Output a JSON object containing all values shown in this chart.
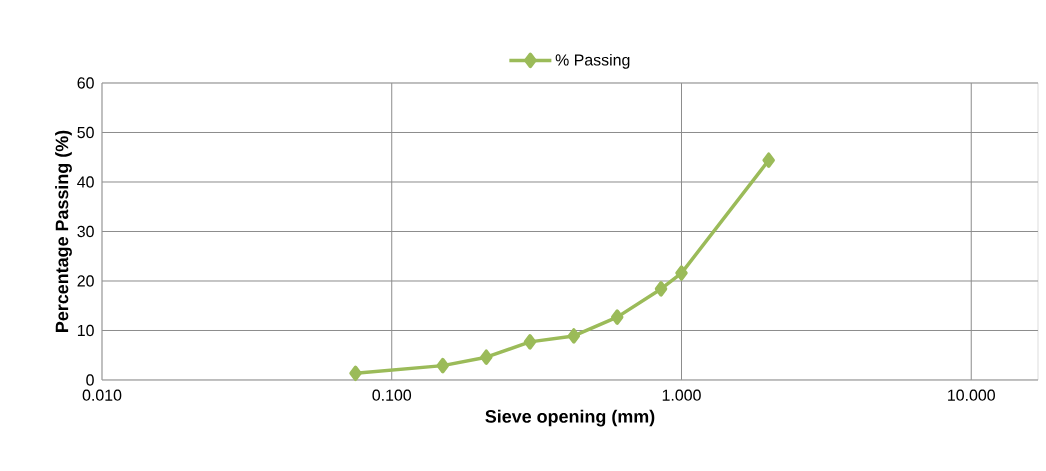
{
  "chart_data": {
    "type": "line",
    "xlabel": "Sieve opening (mm)",
    "ylabel": "Percentage Passing (%)",
    "x": [
      0.075,
      0.15,
      0.212,
      0.3,
      0.425,
      0.6,
      0.85,
      1.0,
      2.0
    ],
    "series": [
      {
        "name": "% Passing",
        "color": "#9bbb59",
        "values": [
          1.35,
          2.9,
          4.6,
          7.7,
          8.9,
          12.7,
          18.4,
          21.6,
          44.4
        ]
      }
    ],
    "log": "x",
    "xlim": [
      0.01,
      17
    ],
    "ylim": [
      0,
      60
    ],
    "xticks": [
      {
        "value": 0.01,
        "label": "0.010"
      },
      {
        "value": 0.1,
        "label": "0.100"
      },
      {
        "value": 1,
        "label": "1.000"
      },
      {
        "value": 10,
        "label": "10.000"
      }
    ],
    "yticks": [
      0,
      10,
      20,
      30,
      40,
      50,
      60
    ],
    "grid": true,
    "legend": "top",
    "marker": "diamond",
    "line_style": "solid"
  }
}
